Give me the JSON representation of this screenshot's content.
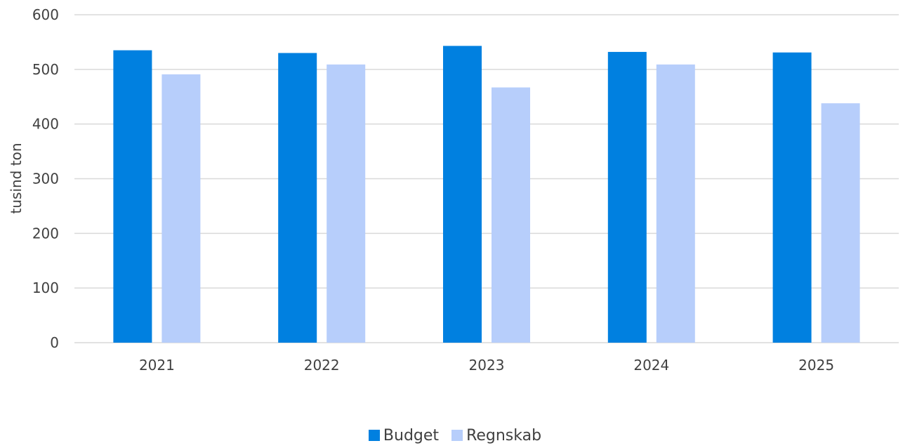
{
  "chart_data": {
    "type": "bar",
    "categories": [
      "2021",
      "2022",
      "2023",
      "2024",
      "2025"
    ],
    "series": [
      {
        "name": "Budget",
        "color": "#0080e0",
        "values": [
          535,
          530,
          543,
          532,
          531
        ]
      },
      {
        "name": "Regnskab",
        "color": "#b7cefb",
        "values": [
          491,
          509,
          467,
          509,
          438
        ]
      }
    ],
    "ylabel": "tusind ton",
    "ylim": [
      0,
      600
    ],
    "yticks": [
      "0",
      "100",
      "200",
      "300",
      "400",
      "500",
      "600"
    ],
    "grid": true,
    "legend_position": "bottom"
  }
}
